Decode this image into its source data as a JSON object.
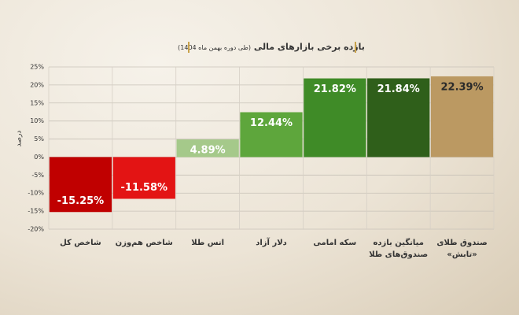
{
  "chart_data": {
    "type": "bar",
    "title": "بازده برخی بازارهای مالی",
    "subtitle": "(طی دوره بهمن ماه 1404)",
    "y_label": "درصد",
    "categories": [
      "شاخص کل",
      "شاخص هم‌وزن",
      "انس طلا",
      "دلار آزاد",
      "سکه امامی",
      "میانگین بازده صندوق‌های طلا",
      "صندوق طلای «تابش»"
    ],
    "values": [
      -15.25,
      -11.58,
      4.89,
      12.44,
      21.82,
      21.84,
      22.39
    ],
    "value_labels": [
      "-15.25%",
      "-11.58%",
      "4.89%",
      "12.44%",
      "21.82%",
      "21.84%",
      "22.39%"
    ],
    "colors": [
      "#c00000",
      "#e31414",
      "#a5c98a",
      "#5ea63c",
      "#3f8b27",
      "#2f5f1a",
      "#bb9962"
    ],
    "value_label_colors": [
      "#ffffff",
      "#ffffff",
      "#ffffff",
      "#ffffff",
      "#ffffff",
      "#ffffff",
      "#2a2a2a"
    ],
    "ylim": [
      -20,
      25
    ],
    "yticks": [
      {
        "value": -20,
        "label": "-20%"
      },
      {
        "value": -15,
        "label": "-15%"
      },
      {
        "value": -10,
        "label": "-10%"
      },
      {
        "value": -5,
        "label": "-5%"
      },
      {
        "value": 0,
        "label": "0%"
      },
      {
        "value": 5,
        "label": "5%"
      },
      {
        "value": 10,
        "label": "10%"
      },
      {
        "value": 15,
        "label": "15%"
      },
      {
        "value": 20,
        "label": "20%"
      },
      {
        "value": 25,
        "label": "25%"
      }
    ],
    "grid": true
  }
}
